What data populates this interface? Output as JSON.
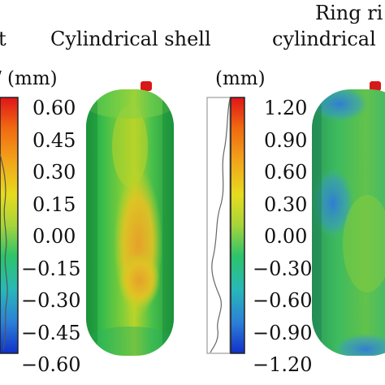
{
  "titles": {
    "left_partial": "t",
    "middle": "Cylindrical shell",
    "right_line1": "Ring ri",
    "right_line2": "cylindrical"
  },
  "units": {
    "left_partial": "/ (mm)",
    "middle": "(mm)"
  },
  "scale_left": [
    "0.60",
    "0.45",
    "0.30",
    "0.15",
    "0.00",
    "−0.15",
    "−0.30",
    "−0.45",
    "−0.60"
  ],
  "scale_right": [
    "1.20",
    "0.90",
    "0.60",
    "0.30",
    "0.00",
    "−0.30",
    "−0.60",
    "−0.90",
    "−1.20"
  ],
  "colors": {
    "colorbar": [
      "#e0141a",
      "#f06a10",
      "#f2a51a",
      "#e6dc1e",
      "#a6d43a",
      "#2cc46a",
      "#28b8b8",
      "#2c7fd8",
      "#1030c8"
    ],
    "shell_green": "#3cc04e",
    "shell_yellow": "#d8d020",
    "shell_orange": "#e8a828",
    "ring_blue": "#3a8ed8",
    "cap_red": "#d81818"
  }
}
